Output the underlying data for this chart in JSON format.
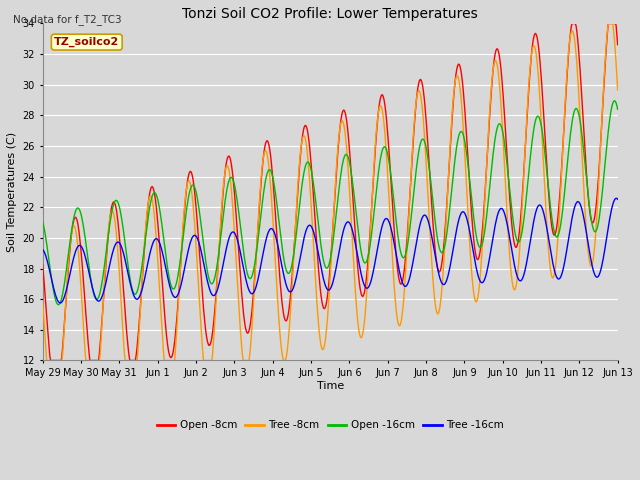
{
  "title": "Tonzi Soil CO2 Profile: Lower Temperatures",
  "subtitle": "No data for f_T2_TC3",
  "xlabel": "Time",
  "ylabel": "Soil Temperatures (C)",
  "legend_label": "TZ_soilco2",
  "ylim": [
    12,
    34
  ],
  "yticks": [
    12,
    14,
    16,
    18,
    20,
    22,
    24,
    26,
    28,
    30,
    32,
    34
  ],
  "xtick_labels": [
    "May 29",
    "May 30",
    "May 31",
    "Jun 1",
    "Jun 2",
    "Jun 3",
    "Jun 4",
    "Jun 5",
    "Jun 6",
    "Jun 7",
    "Jun 8",
    "Jun 9",
    "Jun 10",
    "Jun 11",
    "Jun 12",
    "Jun 13"
  ],
  "series_labels": [
    "Open -8cm",
    "Tree -8cm",
    "Open -16cm",
    "Tree -16cm"
  ],
  "series_colors": [
    "#ff0000",
    "#ff9900",
    "#00bb00",
    "#0000ff"
  ],
  "background_color": "#d8d8d8",
  "plot_bg_color": "#d8d8d8",
  "grid_color": "#ffffff",
  "n_days": 15,
  "points_per_day": 48
}
